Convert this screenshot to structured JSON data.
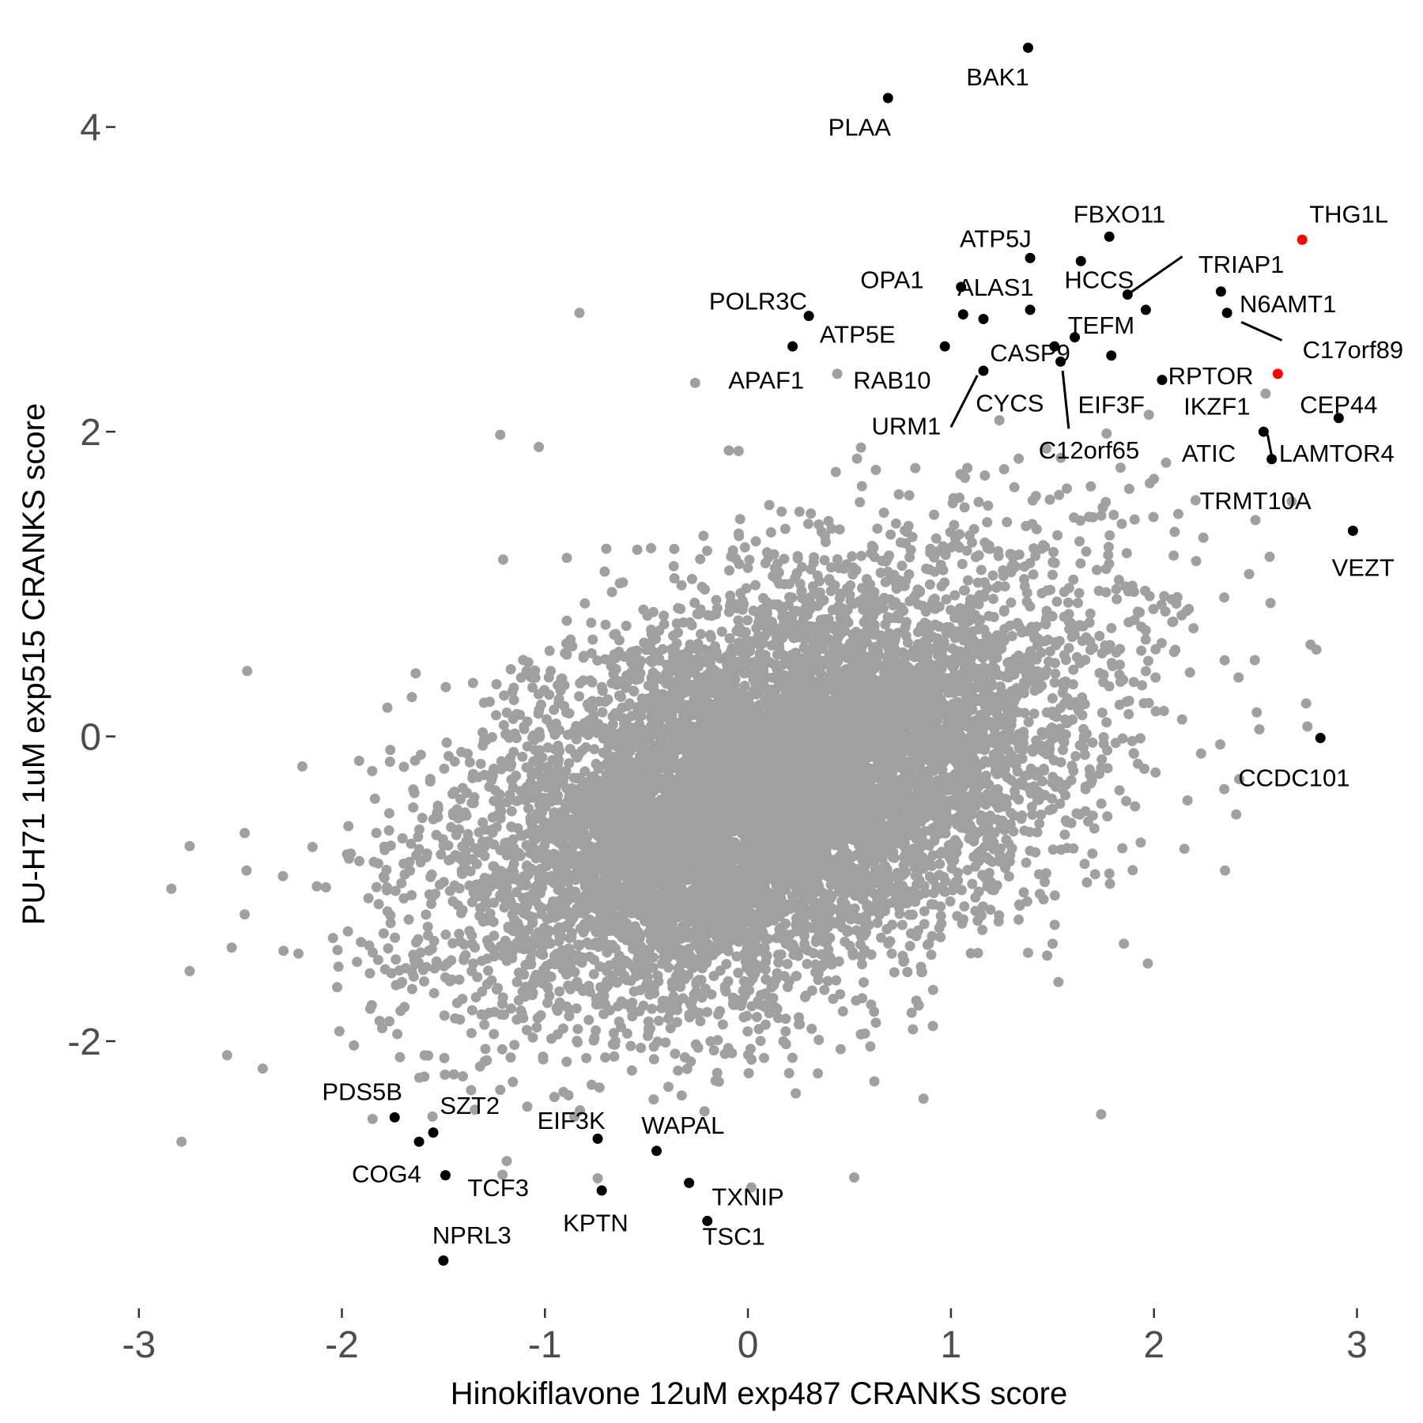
{
  "chart_data": {
    "type": "scatter",
    "xlabel": "Hinokiflavone 12uM exp487 CRANKS score",
    "ylabel": "PU-H71 1uM exp515 CRANKS score",
    "xlim": [
      -3.1,
      3.15
    ],
    "ylim": [
      -3.65,
      4.6
    ],
    "x_ticks": [
      -3,
      -2,
      -1,
      0,
      1,
      2,
      3
    ],
    "y_ticks": [
      -2,
      0,
      2,
      4
    ],
    "grid": false,
    "background": "#ffffff",
    "colors": {
      "background_points": "#a0a0a0",
      "highlight": "#000000",
      "special": "#ff0000",
      "tick_label": "#4d4d4d"
    },
    "background_cloud": {
      "n_points": 9000,
      "center": [
        0.1,
        -0.35
      ],
      "sd": [
        0.75,
        0.7
      ],
      "correlation": 0.45,
      "seed": 17
    },
    "background_outliers": [
      {
        "x": -0.83,
        "y": 2.78
      },
      {
        "x": -0.26,
        "y": 2.32
      },
      {
        "x": 0.44,
        "y": 2.38
      },
      {
        "x": -2.84,
        "y": -1.0
      },
      {
        "x": -2.75,
        "y": -0.72
      },
      {
        "x": -2.75,
        "y": -1.54
      },
      {
        "x": -2.79,
        "y": -2.66
      },
      {
        "x": -2.47,
        "y": -0.88
      },
      {
        "x": -2.39,
        "y": -2.18
      },
      {
        "x": -1.22,
        "y": 1.98
      },
      {
        "x": -1.03,
        "y": 1.9
      },
      {
        "x": 2.8,
        "y": 0.57
      },
      {
        "x": 2.35,
        "y": -0.88
      },
      {
        "x": 1.78,
        "y": -0.9
      },
      {
        "x": 1.97,
        "y": -1.49
      },
      {
        "x": -0.74,
        "y": -2.9
      },
      {
        "x": 2.12,
        "y": 1.46
      },
      {
        "x": 2.5,
        "y": 1.42
      },
      {
        "x": 1.74,
        "y": -2.48
      },
      {
        "x": 2.55,
        "y": 2.25
      },
      {
        "x": 2.42,
        "y": -0.28
      }
    ],
    "points": [
      {
        "label": "BAK1",
        "x": 1.38,
        "y": 4.52,
        "color": "#000000"
      },
      {
        "label": "PLAA",
        "x": 0.69,
        "y": 4.19,
        "color": "#000000"
      },
      {
        "label": "THG1L",
        "x": 2.73,
        "y": 3.26,
        "color": "#ff0000"
      },
      {
        "label": "FBXO11",
        "x": 1.78,
        "y": 3.28,
        "color": "#000000"
      },
      {
        "label": "ATP5J",
        "x": 1.39,
        "y": 3.14,
        "color": "#000000"
      },
      {
        "label": "HCCS",
        "x": 1.64,
        "y": 3.12,
        "color": "#000000"
      },
      {
        "label": "TRIAP1",
        "x": 1.87,
        "y": 2.9,
        "color": "#000000"
      },
      {
        "label": "OPA1",
        "x": 1.05,
        "y": 2.95,
        "color": "#000000"
      },
      {
        "label": "ALAS1",
        "x": 1.39,
        "y": 2.8,
        "color": "#000000"
      },
      {
        "label": "N6AMT1",
        "x": 2.33,
        "y": 2.92,
        "color": "#000000"
      },
      {
        "label": "C17orf89",
        "x": 2.36,
        "y": 2.78,
        "color": "#000000"
      },
      {
        "label": "POLR3C",
        "x": 0.3,
        "y": 2.76,
        "color": "#000000"
      },
      {
        "label": "ATP5E",
        "x": 1.06,
        "y": 2.77,
        "color": "#000000"
      },
      {
        "label": "TEFM",
        "x": 1.96,
        "y": 2.8,
        "color": "#000000"
      },
      {
        "label": "CASP9",
        "x": 1.16,
        "y": 2.74,
        "color": "#000000"
      },
      {
        "label": "APAF1",
        "x": 0.22,
        "y": 2.56,
        "color": "#000000"
      },
      {
        "label": "RAB10",
        "x": 0.97,
        "y": 2.56,
        "color": "#000000"
      },
      {
        "label": "EIF3F",
        "x": 1.61,
        "y": 2.62,
        "color": "#000000"
      },
      {
        "label": "CYCS",
        "x": 1.51,
        "y": 2.56,
        "color": "#000000"
      },
      {
        "label": "C12orf65",
        "x": 1.54,
        "y": 2.46,
        "color": "#000000"
      },
      {
        "label": "URM1",
        "x": 1.16,
        "y": 2.4,
        "color": "#000000"
      },
      {
        "label": "RPTOR",
        "x": 2.04,
        "y": 2.34,
        "color": "#000000"
      },
      {
        "label": "CEP44",
        "x": 2.61,
        "y": 2.38,
        "color": "#ff0000"
      },
      {
        "label": "IKZF1",
        "x": 1.79,
        "y": 2.5,
        "color": "#000000"
      },
      {
        "label": "ATIC",
        "x": 2.91,
        "y": 2.09,
        "color": "#000000"
      },
      {
        "label": "LAMTOR4",
        "x": 2.54,
        "y": 2.0,
        "color": "#000000"
      },
      {
        "label": "TRMT10A",
        "x": 2.58,
        "y": 1.82,
        "color": "#000000"
      },
      {
        "label": "VEZT",
        "x": 2.98,
        "y": 1.35,
        "color": "#000000"
      },
      {
        "label": "CCDC101",
        "x": 2.82,
        "y": -0.01,
        "color": "#000000"
      },
      {
        "label": "PDS5B",
        "x": -1.74,
        "y": -2.5,
        "color": "#000000"
      },
      {
        "label": "SZT2",
        "x": -1.55,
        "y": -2.6,
        "color": "#000000"
      },
      {
        "label": "COG4",
        "x": -1.62,
        "y": -2.66,
        "color": "#000000"
      },
      {
        "label": "TCF3",
        "x": -1.49,
        "y": -2.88,
        "color": "#000000"
      },
      {
        "label": "NPRL3",
        "x": -1.5,
        "y": -3.44,
        "color": "#000000"
      },
      {
        "label": "EIF3K",
        "x": -0.74,
        "y": -2.64,
        "color": "#000000"
      },
      {
        "label": "KPTN",
        "x": -0.72,
        "y": -2.98,
        "color": "#000000"
      },
      {
        "label": "WAPAL",
        "x": -0.45,
        "y": -2.72,
        "color": "#000000"
      },
      {
        "label": "TXNIP",
        "x": -0.29,
        "y": -2.93,
        "color": "#000000"
      },
      {
        "label": "TSC1",
        "x": -0.2,
        "y": -3.18,
        "color": "#000000"
      }
    ],
    "annotations": [
      {
        "text": "BAK1",
        "x": 1.23,
        "y": 4.33,
        "anchor": "middle"
      },
      {
        "text": "PLAA",
        "x": 0.55,
        "y": 4.0,
        "anchor": "middle"
      },
      {
        "text": "THG1L",
        "x": 2.96,
        "y": 3.43,
        "anchor": "middle"
      },
      {
        "text": "FBXO11",
        "x": 1.83,
        "y": 3.43,
        "anchor": "middle"
      },
      {
        "text": "ATP5J",
        "x": 1.22,
        "y": 3.27,
        "anchor": "middle"
      },
      {
        "text": "HCCS",
        "x": 1.73,
        "y": 3.0,
        "anchor": "middle"
      },
      {
        "text": "TRIAP1",
        "x": 2.43,
        "y": 3.1,
        "anchor": "middle"
      },
      {
        "text": "OPA1",
        "x": 0.71,
        "y": 3.0,
        "anchor": "middle"
      },
      {
        "text": "ALAS1",
        "x": 1.22,
        "y": 2.95,
        "anchor": "middle"
      },
      {
        "text": "N6AMT1",
        "x": 2.66,
        "y": 2.84,
        "anchor": "middle"
      },
      {
        "text": "C17orf89",
        "x": 2.98,
        "y": 2.54,
        "anchor": "middle"
      },
      {
        "text": "POLR3C",
        "x": 0.05,
        "y": 2.86,
        "anchor": "middle"
      },
      {
        "text": "ATP5E",
        "x": 0.54,
        "y": 2.64,
        "anchor": "middle"
      },
      {
        "text": "TEFM",
        "x": 1.74,
        "y": 2.7,
        "anchor": "middle"
      },
      {
        "text": "CASP9",
        "x": 1.39,
        "y": 2.52,
        "anchor": "middle"
      },
      {
        "text": "APAF1",
        "x": 0.09,
        "y": 2.34,
        "anchor": "middle"
      },
      {
        "text": "RAB10",
        "x": 0.71,
        "y": 2.34,
        "anchor": "middle"
      },
      {
        "text": "EIF3F",
        "x": 1.79,
        "y": 2.18,
        "anchor": "middle"
      },
      {
        "text": "CYCS",
        "x": 1.29,
        "y": 2.19,
        "anchor": "middle"
      },
      {
        "text": "C12orf65",
        "x": 1.68,
        "y": 1.88,
        "anchor": "middle"
      },
      {
        "text": "URM1",
        "x": 0.78,
        "y": 2.04,
        "anchor": "middle"
      },
      {
        "text": "RPTOR",
        "x": 2.28,
        "y": 2.37,
        "anchor": "middle"
      },
      {
        "text": "CEP44",
        "x": 2.91,
        "y": 2.18,
        "anchor": "middle"
      },
      {
        "text": "IKZF1",
        "x": 2.31,
        "y": 2.17,
        "anchor": "middle"
      },
      {
        "text": "ATIC",
        "x": 2.27,
        "y": 1.86,
        "anchor": "middle"
      },
      {
        "text": "LAMTOR4",
        "x": 2.9,
        "y": 1.86,
        "anchor": "middle"
      },
      {
        "text": "TRMT10A",
        "x": 2.5,
        "y": 1.55,
        "anchor": "middle"
      },
      {
        "text": "VEZT",
        "x": 3.03,
        "y": 1.11,
        "anchor": "middle"
      },
      {
        "text": "CCDC101",
        "x": 2.69,
        "y": -0.27,
        "anchor": "middle"
      },
      {
        "text": "PDS5B",
        "x": -1.9,
        "y": -2.33,
        "anchor": "middle"
      },
      {
        "text": "SZT2",
        "x": -1.37,
        "y": -2.42,
        "anchor": "middle"
      },
      {
        "text": "COG4",
        "x": -1.78,
        "y": -2.87,
        "anchor": "middle"
      },
      {
        "text": "TCF3",
        "x": -1.23,
        "y": -2.96,
        "anchor": "middle"
      },
      {
        "text": "NPRL3",
        "x": -1.36,
        "y": -3.27,
        "anchor": "middle"
      },
      {
        "text": "EIF3K",
        "x": -0.87,
        "y": -2.52,
        "anchor": "middle"
      },
      {
        "text": "KPTN",
        "x": -0.75,
        "y": -3.19,
        "anchor": "middle"
      },
      {
        "text": "WAPAL",
        "x": -0.32,
        "y": -2.55,
        "anchor": "middle"
      },
      {
        "text": "TXNIP",
        "x": 0.0,
        "y": -3.02,
        "anchor": "middle"
      },
      {
        "text": "TSC1",
        "x": -0.07,
        "y": -3.28,
        "anchor": "middle"
      }
    ],
    "leader_lines": [
      {
        "x1": 1.87,
        "y1": 2.9,
        "x2": 2.14,
        "y2": 3.15
      },
      {
        "x1": 2.43,
        "y1": 2.72,
        "x2": 2.63,
        "y2": 2.6
      },
      {
        "x1": 1.0,
        "y1": 2.03,
        "x2": 1.13,
        "y2": 2.37
      },
      {
        "x1": 1.55,
        "y1": 2.4,
        "x2": 1.58,
        "y2": 2.02
      },
      {
        "x1": 2.56,
        "y1": 1.98,
        "x2": 2.58,
        "y2": 1.84
      }
    ]
  }
}
